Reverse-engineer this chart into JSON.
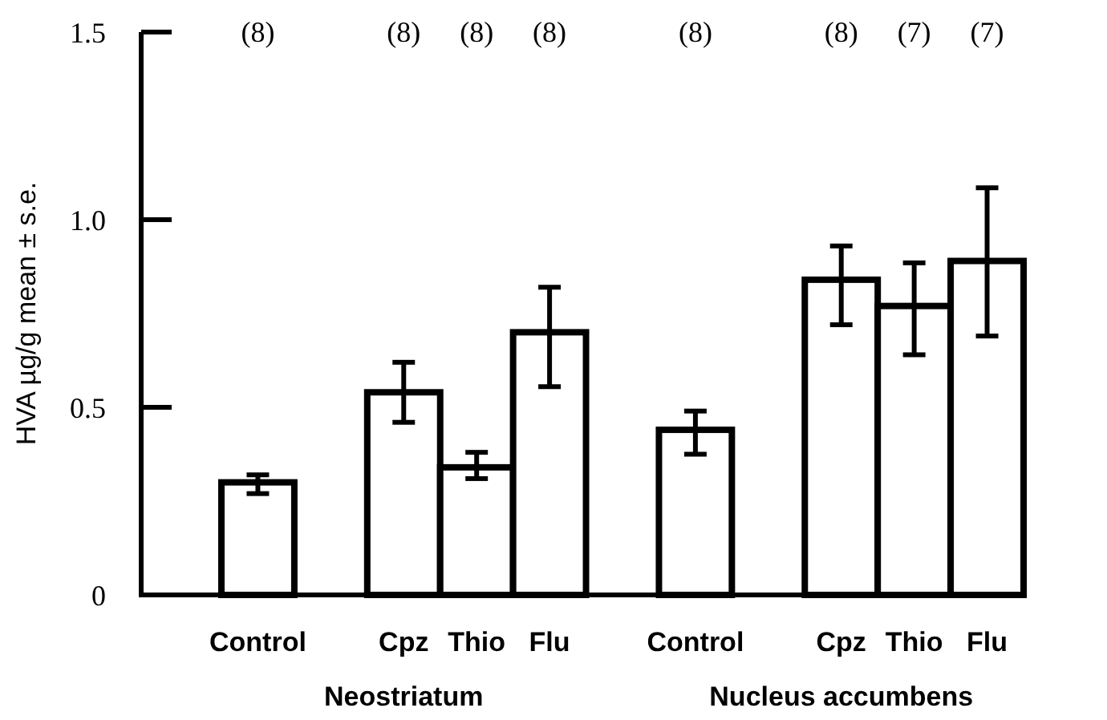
{
  "chart_data": {
    "type": "bar",
    "ylabel": "HVA µg/g mean ± s.e.",
    "categories": [
      "Control",
      null,
      "Cpz",
      "Thio",
      "Flu",
      null,
      "Control",
      null,
      "Cpz",
      "Thio",
      "Flu"
    ],
    "values": [
      0.3,
      null,
      0.54,
      0.34,
      0.7,
      null,
      0.44,
      null,
      0.84,
      0.77,
      0.89
    ],
    "errors": [
      [
        0.27,
        0.32
      ],
      null,
      [
        0.46,
        0.62
      ],
      [
        0.31,
        0.38
      ],
      [
        0.555,
        0.82
      ],
      null,
      [
        0.375,
        0.49
      ],
      null,
      [
        0.72,
        0.93
      ],
      [
        0.64,
        0.885
      ],
      [
        0.69,
        1.085
      ]
    ],
    "color": "#ffffff",
    "ylim": [
      0,
      1.5
    ],
    "yticks": [
      0,
      0.5,
      {
        "value": 1,
        "label": "1.0"
      },
      1.5
    ],
    "annotations": [
      "(8)",
      "(8)",
      "(8)",
      "(8)",
      "(8)",
      "(8)",
      "(7)",
      "(7)",
      "Neostriatum",
      "Nucleus accumbens"
    ]
  }
}
